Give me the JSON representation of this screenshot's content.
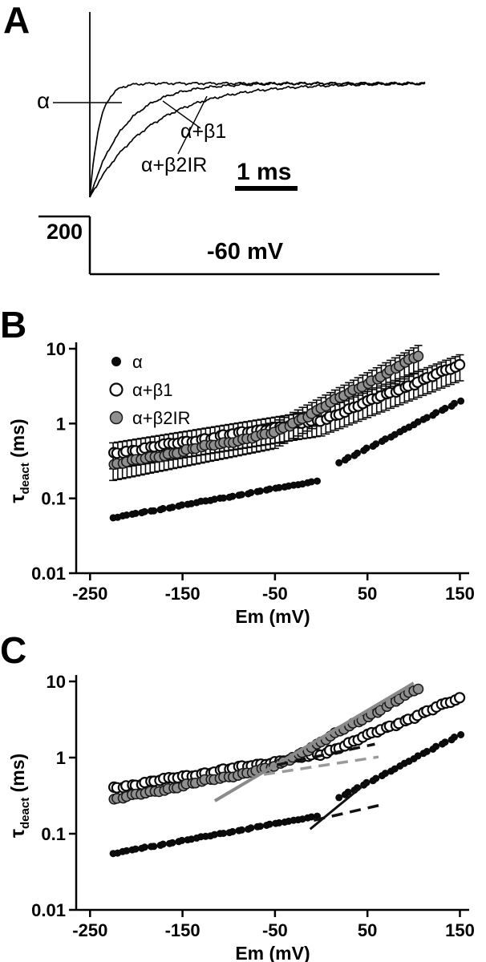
{
  "figure": {
    "panels": {
      "a": "A",
      "b": "B",
      "c": "C"
    },
    "panel_a": {
      "labels": {
        "alpha": "α",
        "alpha_b1": "α+β1",
        "alpha_b2ir": "α+β2IR"
      },
      "time_scale": "1 ms",
      "current_scale": "200",
      "voltage": "-60 mV",
      "traces": [
        {
          "name": "α",
          "tau_ms": 0.15
        },
        {
          "name": "α+β2IR",
          "tau_ms": 0.55
        },
        {
          "name": "α+β1",
          "tau_ms": 0.95
        }
      ]
    }
  },
  "chart_data": [
    {
      "panel": "B",
      "type": "scatter",
      "xlabel": "Em (mV)",
      "ylabel_parts": {
        "symbol": "τ",
        "subscript": "deact",
        "units": " (ms)"
      },
      "xlim": [
        -265,
        160
      ],
      "x_ticks": [
        -250,
        -150,
        -50,
        50,
        150
      ],
      "yscale": "log",
      "ylim": [
        0.01,
        10
      ],
      "y_ticks": [
        0.01,
        0.1,
        1,
        10
      ],
      "error_bars": true,
      "legend": [
        {
          "label": "α",
          "marker": "filled-black"
        },
        {
          "label": "α+β1",
          "marker": "open"
        },
        {
          "label": "α+β2IR",
          "marker": "filled-gray"
        }
      ],
      "series": [
        {
          "name": "α",
          "marker": "filled-black",
          "error_frac": 0.07,
          "points": [
            [
              -225,
              0.055
            ],
            [
              -220,
              0.056
            ],
            [
              -215,
              0.058
            ],
            [
              -210,
              0.059
            ],
            [
              -205,
              0.061
            ],
            [
              -200,
              0.063
            ],
            [
              -195,
              0.064
            ],
            [
              -190,
              0.066
            ],
            [
              -185,
              0.068
            ],
            [
              -180,
              0.069
            ],
            [
              -175,
              0.071
            ],
            [
              -170,
              0.073
            ],
            [
              -165,
              0.075
            ],
            [
              -160,
              0.077
            ],
            [
              -155,
              0.079
            ],
            [
              -150,
              0.081
            ],
            [
              -145,
              0.083
            ],
            [
              -140,
              0.085
            ],
            [
              -135,
              0.087
            ],
            [
              -130,
              0.09
            ],
            [
              -125,
              0.092
            ],
            [
              -120,
              0.094
            ],
            [
              -115,
              0.097
            ],
            [
              -110,
              0.1
            ],
            [
              -105,
              0.102
            ],
            [
              -100,
              0.105
            ],
            [
              -95,
              0.107
            ],
            [
              -90,
              0.11
            ],
            [
              -85,
              0.113
            ],
            [
              -80,
              0.116
            ],
            [
              -75,
              0.119
            ],
            [
              -70,
              0.122
            ],
            [
              -65,
              0.125
            ],
            [
              -60,
              0.129
            ],
            [
              -55,
              0.132
            ],
            [
              -50,
              0.135
            ],
            [
              -45,
              0.139
            ],
            [
              -40,
              0.143
            ],
            [
              -35,
              0.146
            ],
            [
              -30,
              0.15
            ],
            [
              -25,
              0.154
            ],
            [
              -20,
              0.158
            ],
            [
              -15,
              0.162
            ],
            [
              -10,
              0.166
            ],
            [
              -5,
              0.171
            ],
            [
              20,
              0.3
            ],
            [
              25,
              0.323
            ],
            [
              30,
              0.347
            ],
            [
              35,
              0.373
            ],
            [
              40,
              0.402
            ],
            [
              45,
              0.432
            ],
            [
              50,
              0.465
            ],
            [
              55,
              0.5
            ],
            [
              60,
              0.538
            ],
            [
              65,
              0.579
            ],
            [
              70,
              0.623
            ],
            [
              75,
              0.67
            ],
            [
              80,
              0.72
            ],
            [
              85,
              0.775
            ],
            [
              90,
              0.834
            ],
            [
              95,
              0.897
            ],
            [
              100,
              0.965
            ],
            [
              105,
              1.04
            ],
            [
              110,
              1.12
            ],
            [
              115,
              1.2
            ],
            [
              120,
              1.29
            ],
            [
              125,
              1.39
            ],
            [
              130,
              1.5
            ],
            [
              135,
              1.61
            ],
            [
              140,
              1.73
            ],
            [
              145,
              1.86
            ],
            [
              150,
              2.0
            ]
          ]
        },
        {
          "name": "α+β1",
          "marker": "open",
          "error_frac": 0.38,
          "points": [
            [
              -225,
              0.4
            ],
            [
              -220,
              0.409
            ],
            [
              -215,
              0.418
            ],
            [
              -210,
              0.428
            ],
            [
              -205,
              0.438
            ],
            [
              -200,
              0.448
            ],
            [
              -195,
              0.458
            ],
            [
              -190,
              0.468
            ],
            [
              -185,
              0.479
            ],
            [
              -180,
              0.49
            ],
            [
              -175,
              0.501
            ],
            [
              -170,
              0.512
            ],
            [
              -165,
              0.524
            ],
            [
              -160,
              0.536
            ],
            [
              -155,
              0.548
            ],
            [
              -150,
              0.561
            ],
            [
              -145,
              0.573
            ],
            [
              -140,
              0.586
            ],
            [
              -135,
              0.6
            ],
            [
              -130,
              0.614
            ],
            [
              -125,
              0.628
            ],
            [
              -120,
              0.642
            ],
            [
              -115,
              0.657
            ],
            [
              -110,
              0.672
            ],
            [
              -105,
              0.687
            ],
            [
              -100,
              0.703
            ],
            [
              -95,
              0.719
            ],
            [
              -90,
              0.735
            ],
            [
              -85,
              0.752
            ],
            [
              -80,
              0.769
            ],
            [
              -75,
              0.787
            ],
            [
              -70,
              0.805
            ],
            [
              -65,
              0.823
            ],
            [
              -60,
              0.842
            ],
            [
              -55,
              0.861
            ],
            [
              -50,
              0.881
            ],
            [
              -45,
              0.901
            ],
            [
              -40,
              0.921
            ],
            [
              -35,
              0.942
            ],
            [
              -30,
              0.964
            ],
            [
              -25,
              0.986
            ],
            [
              -20,
              1.01
            ],
            [
              -15,
              1.03
            ],
            [
              -10,
              1.05
            ],
            [
              -5,
              1.08
            ],
            [
              0,
              1.1
            ],
            [
              5,
              1.17
            ],
            [
              10,
              1.24
            ],
            [
              15,
              1.31
            ],
            [
              20,
              1.38
            ],
            [
              25,
              1.46
            ],
            [
              30,
              1.55
            ],
            [
              35,
              1.64
            ],
            [
              40,
              1.73
            ],
            [
              45,
              1.84
            ],
            [
              50,
              1.94
            ],
            [
              55,
              2.06
            ],
            [
              60,
              2.17
            ],
            [
              65,
              2.3
            ],
            [
              70,
              2.43
            ],
            [
              75,
              2.58
            ],
            [
              80,
              2.73
            ],
            [
              85,
              2.88
            ],
            [
              90,
              3.05
            ],
            [
              95,
              3.23
            ],
            [
              100,
              3.42
            ],
            [
              105,
              3.62
            ],
            [
              110,
              3.83
            ],
            [
              115,
              4.05
            ],
            [
              120,
              4.28
            ],
            [
              125,
              4.53
            ],
            [
              130,
              4.8
            ],
            [
              135,
              5.08
            ],
            [
              140,
              5.37
            ],
            [
              145,
              5.68
            ],
            [
              150,
              6.01
            ]
          ]
        },
        {
          "name": "α+β2IR",
          "marker": "filled-gray",
          "error_frac": 0.38,
          "points": [
            [
              -225,
              0.28
            ],
            [
              -220,
              0.288
            ],
            [
              -215,
              0.296
            ],
            [
              -210,
              0.305
            ],
            [
              -205,
              0.313
            ],
            [
              -200,
              0.322
            ],
            [
              -195,
              0.331
            ],
            [
              -190,
              0.341
            ],
            [
              -185,
              0.351
            ],
            [
              -180,
              0.361
            ],
            [
              -175,
              0.371
            ],
            [
              -170,
              0.381
            ],
            [
              -165,
              0.392
            ],
            [
              -160,
              0.404
            ],
            [
              -155,
              0.415
            ],
            [
              -150,
              0.427
            ],
            [
              -145,
              0.439
            ],
            [
              -140,
              0.452
            ],
            [
              -135,
              0.465
            ],
            [
              -130,
              0.478
            ],
            [
              -125,
              0.492
            ],
            [
              -120,
              0.506
            ],
            [
              -115,
              0.52
            ],
            [
              -110,
              0.535
            ],
            [
              -105,
              0.55
            ],
            [
              -100,
              0.566
            ],
            [
              -95,
              0.582
            ],
            [
              -90,
              0.599
            ],
            [
              -85,
              0.616
            ],
            [
              -80,
              0.634
            ],
            [
              -75,
              0.652
            ],
            [
              -70,
              0.671
            ],
            [
              -65,
              0.69
            ],
            [
              -60,
              0.71
            ],
            [
              -55,
              0.73
            ],
            [
              -50,
              0.751
            ],
            [
              -45,
              0.81
            ],
            [
              -40,
              0.874
            ],
            [
              -35,
              0.944
            ],
            [
              -30,
              1.02
            ],
            [
              -25,
              1.1
            ],
            [
              -20,
              1.19
            ],
            [
              -15,
              1.28
            ],
            [
              -10,
              1.38
            ],
            [
              -5,
              1.49
            ],
            [
              0,
              1.61
            ],
            [
              5,
              1.74
            ],
            [
              10,
              1.88
            ],
            [
              15,
              2.03
            ],
            [
              20,
              2.19
            ],
            [
              25,
              2.36
            ],
            [
              30,
              2.55
            ],
            [
              35,
              2.75
            ],
            [
              40,
              2.97
            ],
            [
              45,
              3.21
            ],
            [
              50,
              3.46
            ],
            [
              55,
              3.73
            ],
            [
              60,
              4.03
            ],
            [
              65,
              4.35
            ],
            [
              70,
              4.7
            ],
            [
              75,
              5.07
            ],
            [
              80,
              5.47
            ],
            [
              85,
              5.9
            ],
            [
              90,
              6.37
            ],
            [
              95,
              6.88
            ],
            [
              100,
              7.43
            ],
            [
              105,
              8.01
            ]
          ]
        }
      ]
    },
    {
      "panel": "C",
      "type": "scatter",
      "xlabel": "Em (mV)",
      "ylabel_parts": {
        "symbol": "τ",
        "subscript": "deact",
        "units": " (ms)"
      },
      "xlim": [
        -265,
        160
      ],
      "x_ticks": [
        -250,
        -150,
        -50,
        50,
        150
      ],
      "yscale": "log",
      "ylim": [
        0.01,
        10
      ],
      "y_ticks": [
        0.01,
        0.1,
        1,
        10
      ],
      "error_bars": false,
      "series_same_as_panel": "B",
      "fit_lines": [
        {
          "x1": -115,
          "y1": 0.27,
          "x2": 100,
          "y2": 9.5,
          "color": "#8a8a8a",
          "dash": null,
          "width": 4
        },
        {
          "x1": -62,
          "y1": 0.6,
          "x2": 62,
          "y2": 1.02,
          "color": "#9a9a9a",
          "dash": "14 9",
          "width": 3.5
        },
        {
          "x1": -48,
          "y1": 0.8,
          "x2": 58,
          "y2": 1.5,
          "color": "#111111",
          "dash": "14 9",
          "width": 3.5
        },
        {
          "x1": -12,
          "y1": 0.115,
          "x2": 52,
          "y2": 0.5,
          "color": "#111111",
          "dash": null,
          "width": 3
        },
        {
          "x1": -8,
          "y1": 0.15,
          "x2": 62,
          "y2": 0.235,
          "color": "#111111",
          "dash": "14 9",
          "width": 3.5
        }
      ]
    }
  ]
}
